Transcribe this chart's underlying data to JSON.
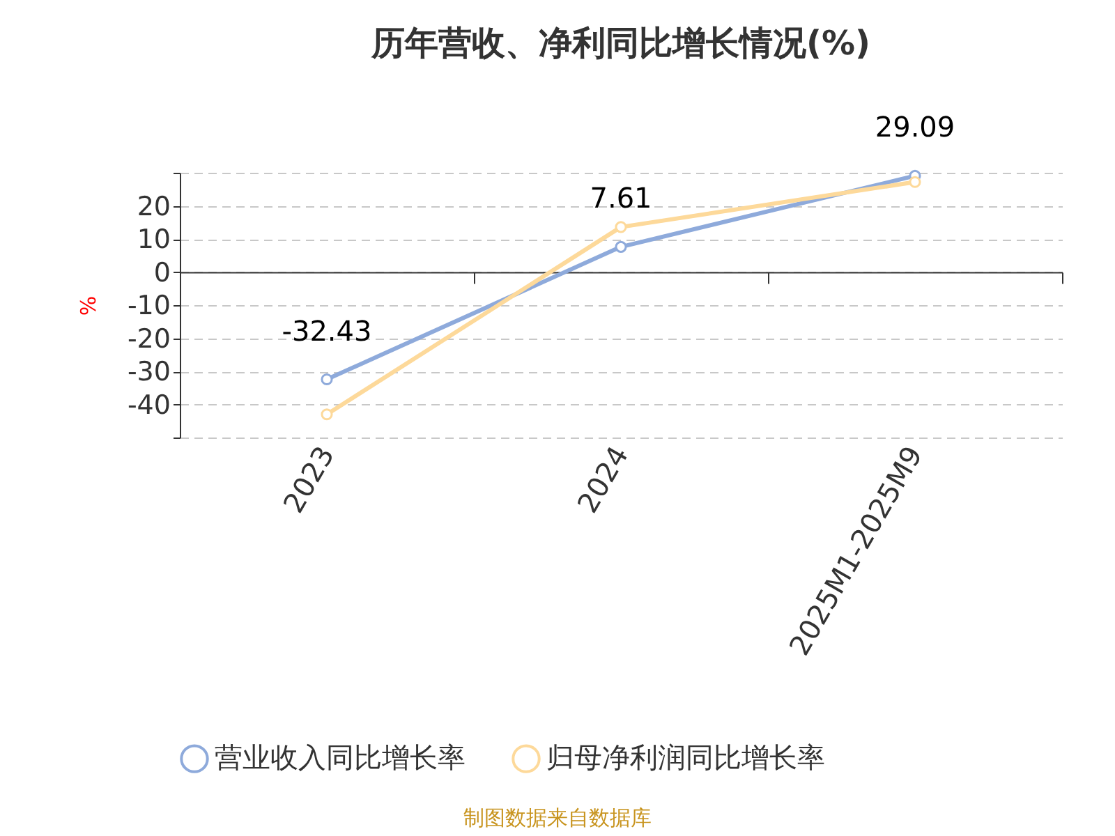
{
  "chart_data": {
    "type": "line",
    "title": "历年营收、净利同比增长情况(%)",
    "ylabel": "%",
    "categories": [
      "2023",
      "2024",
      "2025M1-2025M9"
    ],
    "series": [
      {
        "name": "营业收入同比增长率",
        "color": "#8eaadb",
        "values": [
          -32.43,
          7.61,
          29.09
        ],
        "value_labels": [
          "-32.43",
          "7.61",
          "29.09"
        ]
      },
      {
        "name": "归母净利润同比增长率",
        "color": "#fdd99a",
        "values": [
          -43,
          13.6,
          27.2
        ]
      }
    ],
    "ylim": [
      -50,
      30
    ],
    "yticks": [
      {
        "value": -50,
        "label": null
      },
      -40,
      -30,
      -20,
      -10,
      0,
      10,
      20,
      {
        "value": 30,
        "label": null
      }
    ],
    "grid": "y",
    "legend": "bottom",
    "marker": "circle",
    "line_style": "solid",
    "annotations": [
      "制图数据来自数据库"
    ]
  }
}
